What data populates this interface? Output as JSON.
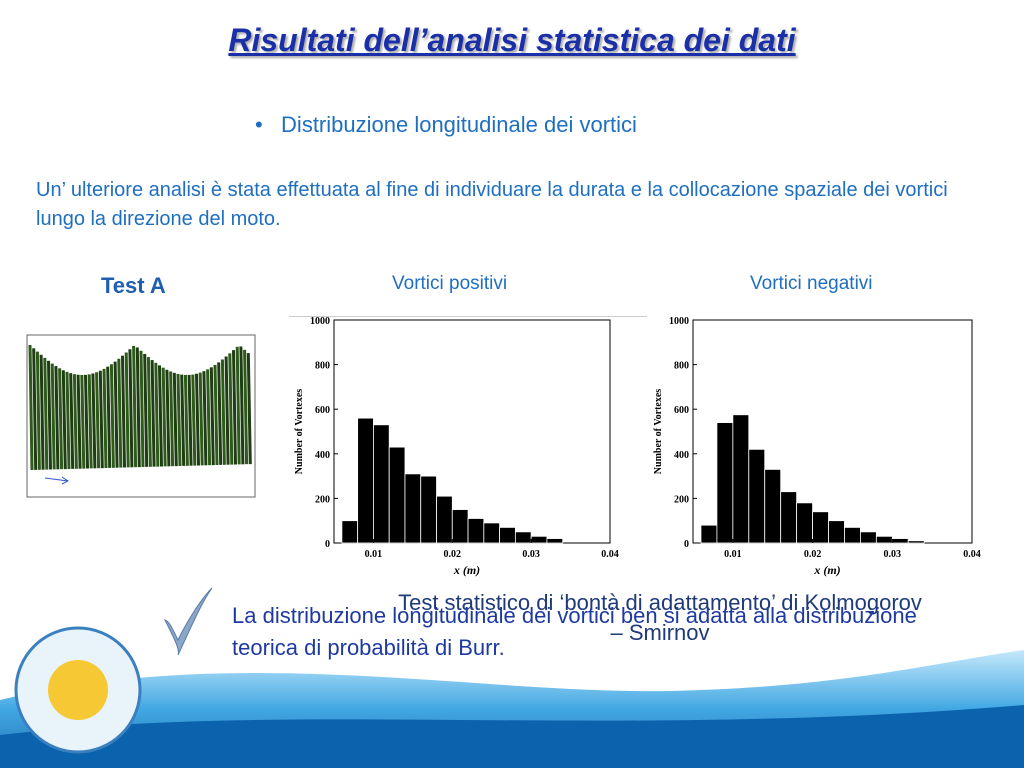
{
  "title": "Risultati dell’analisi statistica dei dati",
  "bullet": "Distribuzione longitudinale dei vortici",
  "paragraph": "Un’ ulteriore analisi è stata effettuata al fine di individuare la durata e la collocazione spaziale dei vortici lungo la direzione del moto.",
  "test_label": "Test A",
  "overlay_text": "Test statistico di ‘bontà di adattamento’ di Kolmogorov – Smirnov",
  "conclusion": "La distribuzione longitudinale dei vortici ben si adatta alla distribuzione teorica di probabilità di Burr.",
  "chart_data": [
    {
      "type": "histogram",
      "title": "Vortici positivi",
      "xlabel": "x (m)",
      "ylabel": "Number of Vortexes",
      "bins": [
        0.006,
        0.008,
        0.01,
        0.012,
        0.014,
        0.016,
        0.018,
        0.02,
        0.022,
        0.024,
        0.026,
        0.028,
        0.03,
        0.032,
        0.034
      ],
      "counts": [
        100,
        560,
        530,
        430,
        310,
        300,
        210,
        150,
        110,
        90,
        70,
        50,
        30,
        20
      ],
      "color": "#000000",
      "xlim": [
        0.005,
        0.04
      ],
      "ylim": [
        0,
        1000
      ],
      "xticks": [
        0.01,
        0.02,
        0.03,
        0.04
      ],
      "yticks": [
        0,
        200,
        400,
        600,
        800,
        1000
      ]
    },
    {
      "type": "histogram",
      "title": "Vortici negativi",
      "xlabel": "x (m)",
      "ylabel": "Number of Vortexes",
      "bins": [
        0.006,
        0.008,
        0.01,
        0.012,
        0.014,
        0.016,
        0.018,
        0.02,
        0.022,
        0.024,
        0.026,
        0.028,
        0.03,
        0.032,
        0.034
      ],
      "counts": [
        80,
        540,
        575,
        420,
        330,
        230,
        180,
        140,
        100,
        70,
        50,
        30,
        20,
        10
      ],
      "color": "#000000",
      "xlim": [
        0.005,
        0.04
      ],
      "ylim": [
        0,
        1000
      ],
      "xticks": [
        0.01,
        0.02,
        0.03,
        0.04
      ],
      "yticks": [
        0,
        200,
        400,
        600,
        800,
        1000
      ]
    }
  ]
}
